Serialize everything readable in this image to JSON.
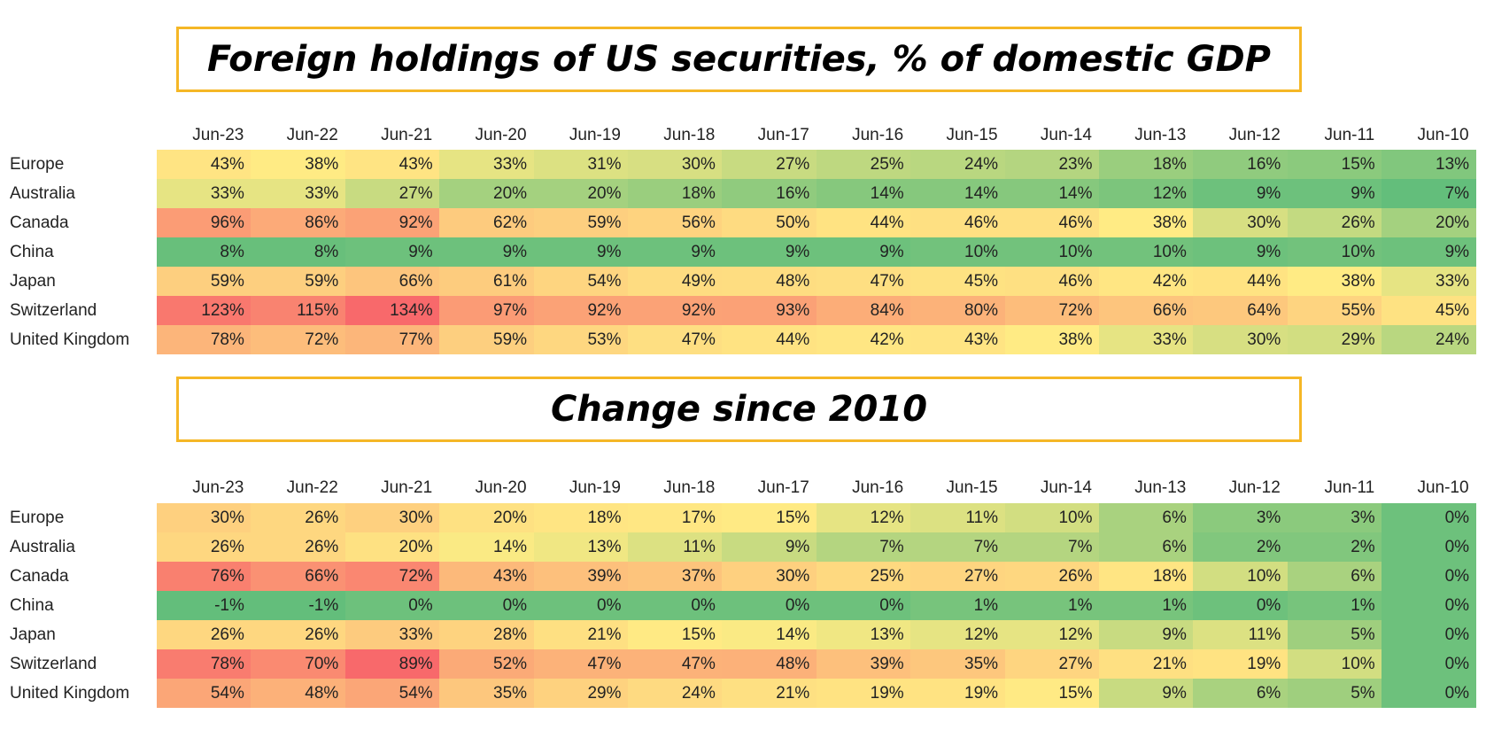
{
  "tables": [
    {
      "title": "Foreign holdings of US securities, % of domestic GDP",
      "columns": [
        "Jun-23",
        "Jun-22",
        "Jun-21",
        "Jun-20",
        "Jun-19",
        "Jun-18",
        "Jun-17",
        "Jun-16",
        "Jun-15",
        "Jun-14",
        "Jun-13",
        "Jun-12",
        "Jun-11",
        "Jun-10"
      ],
      "rows": [
        {
          "label": "Europe",
          "cells": [
            "43%",
            "38%",
            "43%",
            "33%",
            "31%",
            "30%",
            "27%",
            "25%",
            "24%",
            "23%",
            "18%",
            "16%",
            "15%",
            "13%"
          ]
        },
        {
          "label": "Australia",
          "cells": [
            "33%",
            "33%",
            "27%",
            "20%",
            "20%",
            "18%",
            "16%",
            "14%",
            "14%",
            "14%",
            "12%",
            "9%",
            "9%",
            "7%"
          ]
        },
        {
          "label": "Canada",
          "cells": [
            "96%",
            "86%",
            "92%",
            "62%",
            "59%",
            "56%",
            "50%",
            "44%",
            "46%",
            "46%",
            "38%",
            "30%",
            "26%",
            "20%"
          ]
        },
        {
          "label": "China",
          "cells": [
            "8%",
            "8%",
            "9%",
            "9%",
            "9%",
            "9%",
            "9%",
            "9%",
            "10%",
            "10%",
            "10%",
            "9%",
            "10%",
            "9%"
          ]
        },
        {
          "label": "Japan",
          "cells": [
            "59%",
            "59%",
            "66%",
            "61%",
            "54%",
            "49%",
            "48%",
            "47%",
            "45%",
            "46%",
            "42%",
            "44%",
            "38%",
            "33%"
          ]
        },
        {
          "label": "Switzerland",
          "cells": [
            "123%",
            "115%",
            "134%",
            "97%",
            "92%",
            "92%",
            "93%",
            "84%",
            "80%",
            "72%",
            "66%",
            "64%",
            "55%",
            "45%"
          ]
        },
        {
          "label": "United Kingdom",
          "cells": [
            "78%",
            "72%",
            "77%",
            "59%",
            "53%",
            "47%",
            "44%",
            "42%",
            "43%",
            "38%",
            "33%",
            "30%",
            "29%",
            "24%"
          ]
        }
      ]
    },
    {
      "title": "Change since 2010",
      "columns": [
        "Jun-23",
        "Jun-22",
        "Jun-21",
        "Jun-20",
        "Jun-19",
        "Jun-18",
        "Jun-17",
        "Jun-16",
        "Jun-15",
        "Jun-14",
        "Jun-13",
        "Jun-12",
        "Jun-11",
        "Jun-10"
      ],
      "rows": [
        {
          "label": "Europe",
          "cells": [
            "30%",
            "26%",
            "30%",
            "20%",
            "18%",
            "17%",
            "15%",
            "12%",
            "11%",
            "10%",
            "6%",
            "3%",
            "3%",
            "0%"
          ]
        },
        {
          "label": "Australia",
          "cells": [
            "26%",
            "26%",
            "20%",
            "14%",
            "13%",
            "11%",
            "9%",
            "7%",
            "7%",
            "7%",
            "6%",
            "2%",
            "2%",
            "0%"
          ]
        },
        {
          "label": "Canada",
          "cells": [
            "76%",
            "66%",
            "72%",
            "43%",
            "39%",
            "37%",
            "30%",
            "25%",
            "27%",
            "26%",
            "18%",
            "10%",
            "6%",
            "0%"
          ]
        },
        {
          "label": "China",
          "cells": [
            "-1%",
            "-1%",
            "0%",
            "0%",
            "0%",
            "0%",
            "0%",
            "0%",
            "1%",
            "1%",
            "1%",
            "0%",
            "1%",
            "0%"
          ]
        },
        {
          "label": "Japan",
          "cells": [
            "26%",
            "26%",
            "33%",
            "28%",
            "21%",
            "15%",
            "14%",
            "13%",
            "12%",
            "12%",
            "9%",
            "11%",
            "5%",
            "0%"
          ]
        },
        {
          "label": "Switzerland",
          "cells": [
            "78%",
            "70%",
            "89%",
            "52%",
            "47%",
            "47%",
            "48%",
            "39%",
            "35%",
            "27%",
            "21%",
            "19%",
            "10%",
            "0%"
          ]
        },
        {
          "label": "United Kingdom",
          "cells": [
            "54%",
            "48%",
            "54%",
            "35%",
            "29%",
            "24%",
            "21%",
            "19%",
            "19%",
            "15%",
            "9%",
            "6%",
            "5%",
            "0%"
          ]
        }
      ]
    }
  ]
}
